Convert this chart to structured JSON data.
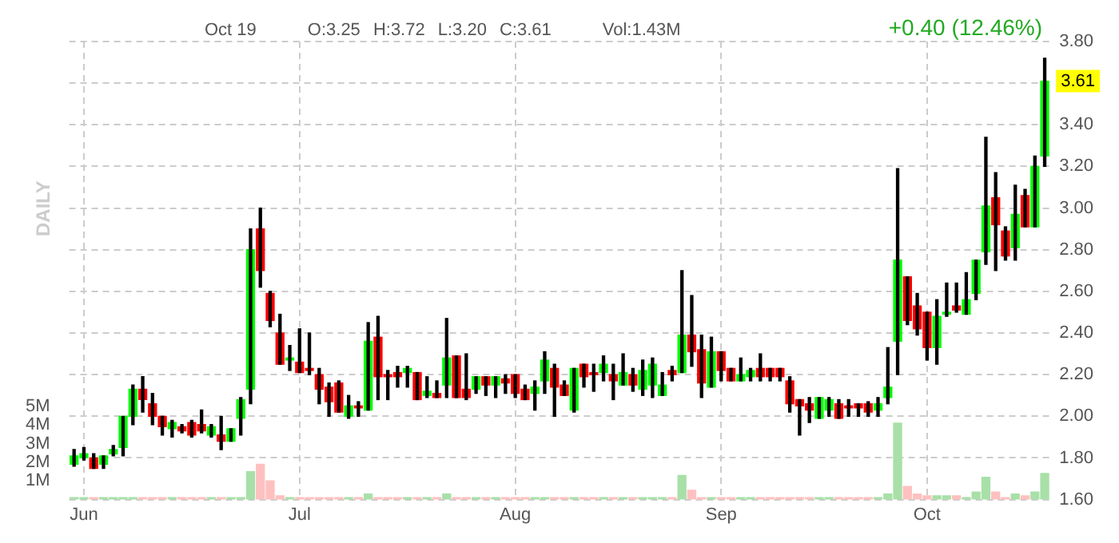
{
  "chart_data": {
    "type": "candlestick",
    "title": "Oct 19",
    "y2label": "DAILY",
    "annotations": [
      "O:3.25",
      "H:3.72",
      "L:3.20",
      "C:3.61",
      "Vol:1.43M",
      "+0.40 (12.46%)",
      "3.61"
    ],
    "categories": [
      null,
      "Jun",
      null,
      null,
      null,
      null,
      null,
      null,
      null,
      null,
      null,
      null,
      null,
      null,
      null,
      null,
      null,
      null,
      null,
      null,
      null,
      null,
      null,
      "Jul",
      null,
      null,
      null,
      null,
      null,
      null,
      null,
      null,
      null,
      null,
      null,
      null,
      null,
      null,
      null,
      null,
      null,
      null,
      null,
      null,
      null,
      "Aug",
      null,
      null,
      null,
      null,
      null,
      null,
      null,
      null,
      null,
      null,
      null,
      null,
      null,
      null,
      null,
      null,
      null,
      null,
      null,
      null,
      "Sep",
      null,
      null,
      null,
      null,
      null,
      null,
      null,
      null,
      null,
      null,
      null,
      null,
      null,
      null,
      null,
      null,
      null,
      null,
      null,
      null,
      "Oct",
      null,
      null,
      null,
      null,
      null,
      null,
      null,
      null,
      null,
      null,
      null,
      null
    ],
    "ohlc": [
      [
        1.77,
        1.84,
        1.76,
        1.81
      ],
      [
        1.8,
        1.85,
        1.79,
        1.82
      ],
      [
        1.8,
        1.82,
        1.75,
        1.75
      ],
      [
        1.77,
        1.81,
        1.75,
        1.81
      ],
      [
        1.82,
        1.86,
        1.81,
        1.84
      ],
      [
        1.85,
        2.0,
        1.81,
        2.0
      ],
      [
        2.0,
        2.15,
        1.96,
        2.13
      ],
      [
        2.13,
        2.19,
        2.02,
        2.08
      ],
      [
        2.06,
        2.11,
        1.96,
        2.0
      ],
      [
        2.0,
        2.0,
        1.91,
        1.95
      ],
      [
        1.94,
        1.98,
        1.9,
        1.97
      ],
      [
        1.95,
        1.96,
        1.92,
        1.93
      ],
      [
        1.97,
        1.98,
        1.9,
        1.91
      ],
      [
        1.96,
        2.03,
        1.92,
        1.93
      ],
      [
        1.91,
        1.96,
        1.9,
        1.95
      ],
      [
        1.91,
        2.0,
        1.84,
        1.88
      ],
      [
        1.88,
        1.94,
        1.88,
        1.94
      ],
      [
        1.99,
        2.09,
        1.91,
        2.08
      ],
      [
        2.13,
        2.9,
        2.06,
        2.8
      ],
      [
        2.9,
        3.0,
        2.62,
        2.7
      ],
      [
        2.59,
        2.6,
        2.43,
        2.46
      ],
      [
        2.4,
        2.49,
        2.25,
        2.25
      ],
      [
        2.27,
        2.34,
        2.22,
        2.28
      ],
      [
        2.26,
        2.42,
        2.21,
        2.21
      ],
      [
        2.23,
        2.4,
        2.2,
        2.22
      ],
      [
        2.2,
        2.23,
        2.06,
        2.13
      ],
      [
        2.14,
        2.16,
        2.0,
        2.07
      ],
      [
        2.16,
        2.17,
        2.02,
        2.02
      ],
      [
        2.0,
        2.1,
        1.99,
        2.05
      ],
      [
        2.05,
        2.07,
        2.0,
        2.04
      ],
      [
        2.03,
        2.45,
        2.03,
        2.36
      ],
      [
        2.38,
        2.48,
        2.08,
        2.19
      ],
      [
        2.2,
        2.22,
        2.08,
        2.19
      ],
      [
        2.21,
        2.24,
        2.14,
        2.19
      ],
      [
        2.21,
        2.24,
        2.14,
        2.23
      ],
      [
        2.21,
        2.21,
        2.08,
        2.08
      ],
      [
        2.1,
        2.19,
        2.09,
        2.12
      ],
      [
        2.11,
        2.17,
        2.09,
        2.09
      ],
      [
        2.15,
        2.47,
        2.09,
        2.28
      ],
      [
        2.29,
        2.29,
        2.09,
        2.09
      ],
      [
        2.13,
        2.3,
        2.08,
        2.09
      ],
      [
        2.13,
        2.19,
        2.11,
        2.19
      ],
      [
        2.19,
        2.19,
        2.1,
        2.15
      ],
      [
        2.15,
        2.19,
        2.09,
        2.19
      ],
      [
        2.18,
        2.2,
        2.11,
        2.16
      ],
      [
        2.2,
        2.2,
        2.09,
        2.11
      ],
      [
        2.13,
        2.15,
        2.08,
        2.08
      ],
      [
        2.11,
        2.17,
        2.03,
        2.14
      ],
      [
        2.17,
        2.31,
        2.11,
        2.27
      ],
      [
        2.23,
        2.25,
        2.0,
        2.14
      ],
      [
        2.15,
        2.17,
        2.1,
        2.1
      ],
      [
        2.03,
        2.23,
        2.02,
        2.23
      ],
      [
        2.25,
        2.25,
        2.14,
        2.19
      ],
      [
        2.21,
        2.25,
        2.12,
        2.2
      ],
      [
        2.21,
        2.29,
        2.17,
        2.25
      ],
      [
        2.2,
        2.25,
        2.08,
        2.17
      ],
      [
        2.15,
        2.3,
        2.15,
        2.21
      ],
      [
        2.2,
        2.23,
        2.12,
        2.15
      ],
      [
        2.13,
        2.27,
        2.1,
        2.22
      ],
      [
        2.15,
        2.28,
        2.09,
        2.25
      ],
      [
        2.1,
        2.21,
        2.1,
        2.15
      ],
      [
        2.22,
        2.24,
        2.17,
        2.2
      ],
      [
        2.21,
        2.7,
        2.21,
        2.39
      ],
      [
        2.39,
        2.58,
        2.24,
        2.31
      ],
      [
        2.32,
        2.39,
        2.09,
        2.16
      ],
      [
        2.14,
        2.38,
        2.14,
        2.31
      ],
      [
        2.31,
        2.31,
        2.17,
        2.22
      ],
      [
        2.23,
        2.23,
        2.17,
        2.17
      ],
      [
        2.17,
        2.28,
        2.17,
        2.2
      ],
      [
        2.19,
        2.23,
        2.17,
        2.22
      ],
      [
        2.23,
        2.3,
        2.17,
        2.19
      ],
      [
        2.23,
        2.23,
        2.17,
        2.19
      ],
      [
        2.23,
        2.23,
        2.17,
        2.19
      ],
      [
        2.17,
        2.19,
        2.02,
        2.06
      ],
      [
        2.08,
        2.08,
        1.91,
        2.05
      ],
      [
        2.06,
        2.09,
        1.97,
        2.03
      ],
      [
        1.99,
        2.09,
        1.99,
        2.09
      ],
      [
        2.03,
        2.09,
        2.0,
        2.08
      ],
      [
        2.06,
        2.08,
        1.99,
        1.99
      ],
      [
        2.05,
        2.08,
        2.0,
        2.04
      ],
      [
        2.06,
        2.06,
        2.0,
        2.04
      ],
      [
        2.06,
        2.07,
        2.0,
        2.02
      ],
      [
        2.03,
        2.09,
        2.0,
        2.06
      ],
      [
        2.09,
        2.33,
        2.06,
        2.14
      ],
      [
        2.36,
        3.19,
        2.2,
        2.75
      ],
      [
        2.67,
        2.67,
        2.44,
        2.46
      ],
      [
        2.53,
        2.59,
        2.39,
        2.42
      ],
      [
        2.5,
        2.5,
        2.27,
        2.33
      ],
      [
        2.33,
        2.56,
        2.25,
        2.48
      ],
      [
        2.49,
        2.64,
        2.48,
        2.5
      ],
      [
        2.53,
        2.64,
        2.5,
        2.51
      ],
      [
        2.49,
        2.69,
        2.49,
        2.56
      ],
      [
        2.59,
        2.75,
        2.56,
        2.75
      ],
      [
        2.79,
        3.34,
        2.73,
        3.01
      ],
      [
        3.05,
        3.17,
        2.7,
        2.92
      ],
      [
        2.89,
        2.91,
        2.75,
        2.77
      ],
      [
        2.81,
        3.11,
        2.75,
        2.97
      ],
      [
        3.06,
        3.09,
        2.91,
        2.91
      ],
      [
        2.91,
        3.25,
        2.91,
        3.2
      ],
      [
        3.25,
        3.72,
        3.2,
        3.61
      ]
    ],
    "colors": [
      "#00ff00",
      "#00ff00",
      "#ff0000",
      "#00ff00",
      "#00ff00",
      "#00ff00",
      "#00ff00",
      "#ff0000",
      "#ff0000",
      "#ff0000",
      "#00ff00",
      "#ff0000",
      "#ff0000",
      "#ff0000",
      "#00ff00",
      "#ff0000",
      "#00ff00",
      "#00ff00",
      "#00ff00",
      "#ff0000",
      "#ff0000",
      "#ff0000",
      "#00ff00",
      "#ff0000",
      "#ff0000",
      "#ff0000",
      "#ff0000",
      "#ff0000",
      "#00ff00",
      "#ff0000",
      "#00ff00",
      "#ff0000",
      "#ff0000",
      "#ff0000",
      "#00ff00",
      "#ff0000",
      "#00ff00",
      "#ff0000",
      "#00ff00",
      "#ff0000",
      "#ff0000",
      "#00ff00",
      "#ff0000",
      "#00ff00",
      "#ff0000",
      "#ff0000",
      "#ff0000",
      "#00ff00",
      "#00ff00",
      "#ff0000",
      "#ff0000",
      "#00ff00",
      "#ff0000",
      "#ff0000",
      "#00ff00",
      "#ff0000",
      "#00ff00",
      "#ff0000",
      "#00ff00",
      "#00ff00",
      "#00ff00",
      "#ff0000",
      "#00ff00",
      "#ff0000",
      "#ff0000",
      "#00ff00",
      "#ff0000",
      "#ff0000",
      "#00ff00",
      "#00ff00",
      "#ff0000",
      "#ff0000",
      "#ff0000",
      "#ff0000",
      "#ff0000",
      "#ff0000",
      "#00ff00",
      "#00ff00",
      "#ff0000",
      "#ff0000",
      "#ff0000",
      "#ff0000",
      "#00ff00",
      "#00ff00",
      "#00ff00",
      "#ff0000",
      "#ff0000",
      "#ff0000",
      "#00ff00",
      "#00ff00",
      "#ff0000",
      "#00ff00",
      "#00ff00",
      "#00ff00",
      "#ff0000",
      "#ff0000",
      "#00ff00",
      "#ff0000",
      "#00ff00",
      "#00ff00"
    ],
    "series": [
      {
        "type": "bar",
        "axis": "y2",
        "values": [
          0.1,
          0.1,
          0.1,
          0.1,
          0.1,
          0.1,
          0.1,
          0.1,
          0.1,
          0.1,
          0.1,
          0.1,
          0.1,
          0.1,
          0.1,
          0.1,
          0.1,
          0.1,
          1.5,
          1.9,
          1.0,
          0.2,
          0.1,
          0.1,
          0.1,
          0.1,
          0.1,
          0.1,
          0.1,
          0.1,
          0.3,
          0.1,
          0.1,
          0.1,
          0.1,
          0.1,
          0.1,
          0.1,
          0.3,
          0.1,
          0.1,
          0.1,
          0.1,
          0.1,
          0.1,
          0.1,
          0.1,
          0.1,
          0.1,
          0.1,
          0.1,
          0.1,
          0.1,
          0.1,
          0.1,
          0.1,
          0.1,
          0.1,
          0.1,
          0.1,
          0.1,
          0.1,
          1.3,
          0.5,
          0.1,
          0.1,
          0.1,
          0.1,
          0.1,
          0.1,
          0.1,
          0.1,
          0.1,
          0.1,
          0.1,
          0.1,
          0.1,
          0.1,
          0.1,
          0.1,
          0.1,
          0.1,
          0.1,
          0.3,
          4.1,
          0.7,
          0.3,
          0.2,
          0.2,
          0.2,
          0.2,
          0.1,
          0.4,
          1.2,
          0.4,
          0.1,
          0.3,
          0.2,
          0.4,
          1.4
        ],
        "colors": [
          "#a8e0a8",
          "#a8e0a8",
          "#ffc0c0",
          "#a8e0a8",
          "#a8e0a8",
          "#a8e0a8",
          "#a8e0a8",
          "#ffc0c0",
          "#ffc0c0",
          "#ffc0c0",
          "#a8e0a8",
          "#ffc0c0",
          "#ffc0c0",
          "#ffc0c0",
          "#a8e0a8",
          "#ffc0c0",
          "#a8e0a8",
          "#a8e0a8",
          "#a8e0a8",
          "#ffc0c0",
          "#ffc0c0",
          "#ffc0c0",
          "#a8e0a8",
          "#ffc0c0",
          "#ffc0c0",
          "#ffc0c0",
          "#ffc0c0",
          "#ffc0c0",
          "#a8e0a8",
          "#ffc0c0",
          "#a8e0a8",
          "#ffc0c0",
          "#ffc0c0",
          "#ffc0c0",
          "#a8e0a8",
          "#ffc0c0",
          "#a8e0a8",
          "#ffc0c0",
          "#a8e0a8",
          "#ffc0c0",
          "#ffc0c0",
          "#a8e0a8",
          "#ffc0c0",
          "#a8e0a8",
          "#ffc0c0",
          "#ffc0c0",
          "#ffc0c0",
          "#a8e0a8",
          "#a8e0a8",
          "#ffc0c0",
          "#ffc0c0",
          "#a8e0a8",
          "#ffc0c0",
          "#ffc0c0",
          "#a8e0a8",
          "#ffc0c0",
          "#a8e0a8",
          "#ffc0c0",
          "#a8e0a8",
          "#a8e0a8",
          "#a8e0a8",
          "#ffc0c0",
          "#a8e0a8",
          "#ffc0c0",
          "#ffc0c0",
          "#a8e0a8",
          "#ffc0c0",
          "#ffc0c0",
          "#a8e0a8",
          "#a8e0a8",
          "#ffc0c0",
          "#ffc0c0",
          "#ffc0c0",
          "#ffc0c0",
          "#ffc0c0",
          "#ffc0c0",
          "#a8e0a8",
          "#a8e0a8",
          "#ffc0c0",
          "#ffc0c0",
          "#ffc0c0",
          "#ffc0c0",
          "#a8e0a8",
          "#a8e0a8",
          "#a8e0a8",
          "#ffc0c0",
          "#ffc0c0",
          "#ffc0c0",
          "#a8e0a8",
          "#a8e0a8",
          "#ffc0c0",
          "#a8e0a8",
          "#a8e0a8",
          "#a8e0a8",
          "#ffc0c0",
          "#ffc0c0",
          "#a8e0a8",
          "#ffc0c0",
          "#a8e0a8",
          "#a8e0a8"
        ]
      }
    ],
    "ylim": [
      1.6,
      3.8
    ],
    "yticks": [
      {
        "value": 1.6,
        "label": "1.60"
      },
      {
        "value": 1.8,
        "label": "1.80"
      },
      {
        "value": 2.0,
        "label": "2.00"
      },
      {
        "value": 2.2,
        "label": "2.20"
      },
      {
        "value": 2.4,
        "label": "2.40"
      },
      {
        "value": 2.6,
        "label": "2.60"
      },
      {
        "value": 2.8,
        "label": "2.80"
      },
      {
        "value": 3.0,
        "label": "3.00"
      },
      {
        "value": 3.2,
        "label": "3.20"
      },
      {
        "value": 3.4,
        "label": "3.40"
      },
      {
        "value": 3.6,
        "label": null
      },
      {
        "value": 3.8,
        "label": "3.80"
      }
    ],
    "y2lim": [
      0,
      24.6
    ],
    "y2ticks": [
      {
        "value": 1,
        "label": "1M"
      },
      {
        "value": 2,
        "label": "2M"
      },
      {
        "value": 3,
        "label": "3M"
      },
      {
        "value": 4,
        "label": "4M"
      },
      {
        "value": 5,
        "label": "5M"
      }
    ],
    "grid": true,
    "legend": false
  }
}
